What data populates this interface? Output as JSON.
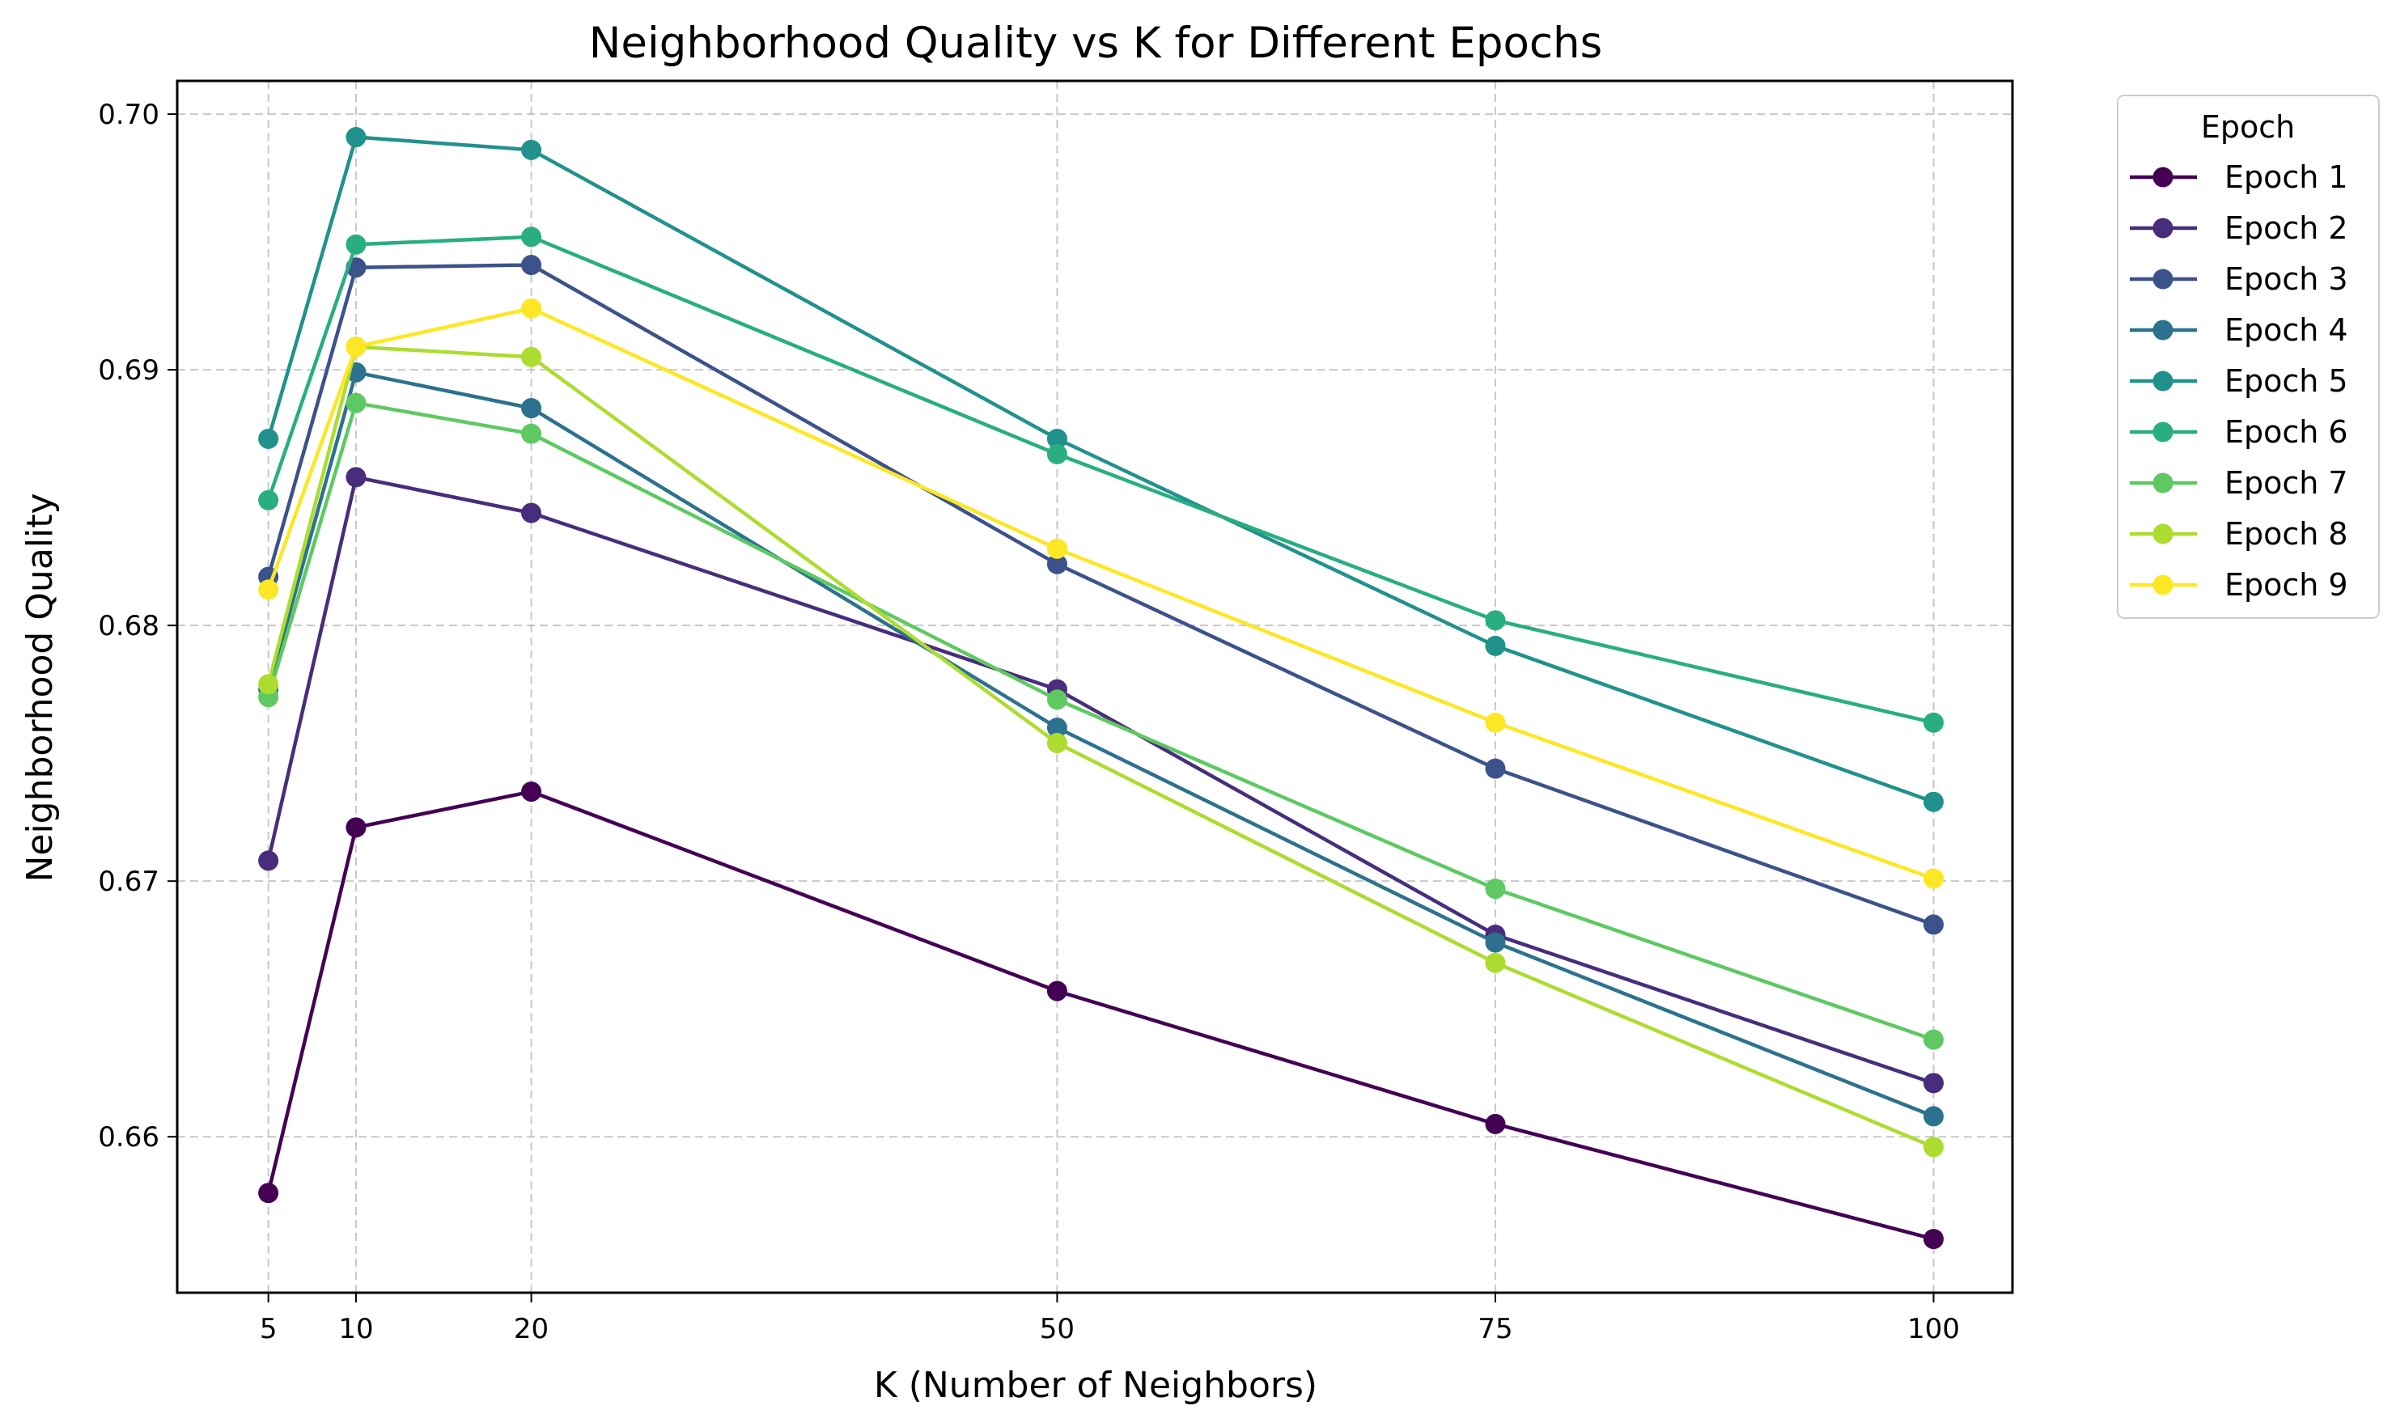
{
  "chart_data": {
    "type": "line",
    "title": "Neighborhood Quality vs K for Different Epochs",
    "xlabel": "K (Number of Neighbors)",
    "ylabel": "Neighborhood Quality",
    "x": [
      5,
      10,
      20,
      50,
      75,
      100
    ],
    "x_tick_labels": [
      "5",
      "10",
      "20",
      "50",
      "75",
      "100"
    ],
    "xlim": [
      -0.2,
      104.5
    ],
    "y_ticks": [
      0.66,
      0.67,
      0.68,
      0.69,
      0.7
    ],
    "y_tick_labels": [
      "0.66",
      "0.67",
      "0.68",
      "0.69",
      "0.70"
    ],
    "ylim": [
      0.6539,
      0.7013
    ],
    "grid": true,
    "grid_style": "dashed",
    "legend_title": "Epoch",
    "legend_position": "outside-upper-right",
    "series": [
      {
        "name": "Epoch 1",
        "color": "#440154",
        "values": [
          0.6578,
          0.6721,
          0.6735,
          0.6657,
          0.6605,
          0.656
        ]
      },
      {
        "name": "Epoch 2",
        "color": "#472d7b",
        "values": [
          0.6708,
          0.6858,
          0.6844,
          0.6775,
          0.6679,
          0.6621
        ]
      },
      {
        "name": "Epoch 3",
        "color": "#3b528b",
        "values": [
          0.6819,
          0.694,
          0.6941,
          0.6824,
          0.6744,
          0.6683
        ]
      },
      {
        "name": "Epoch 4",
        "color": "#2c728e",
        "values": [
          0.6775,
          0.6899,
          0.6885,
          0.676,
          0.6676,
          0.6608
        ]
      },
      {
        "name": "Epoch 5",
        "color": "#21918c",
        "values": [
          0.6873,
          0.6991,
          0.6986,
          0.6873,
          0.6792,
          0.6731
        ]
      },
      {
        "name": "Epoch 6",
        "color": "#28ae80",
        "values": [
          0.6849,
          0.6949,
          0.6952,
          0.6867,
          0.6802,
          0.6762
        ]
      },
      {
        "name": "Epoch 7",
        "color": "#5ec962",
        "values": [
          0.6772,
          0.6887,
          0.6875,
          0.6771,
          0.6697,
          0.6638
        ]
      },
      {
        "name": "Epoch 8",
        "color": "#addc30",
        "values": [
          0.6777,
          0.6909,
          0.6905,
          0.6754,
          0.6668,
          0.6596
        ]
      },
      {
        "name": "Epoch 9",
        "color": "#fde725",
        "values": [
          0.6814,
          0.6909,
          0.6924,
          0.683,
          0.6762,
          0.6701
        ]
      }
    ]
  }
}
